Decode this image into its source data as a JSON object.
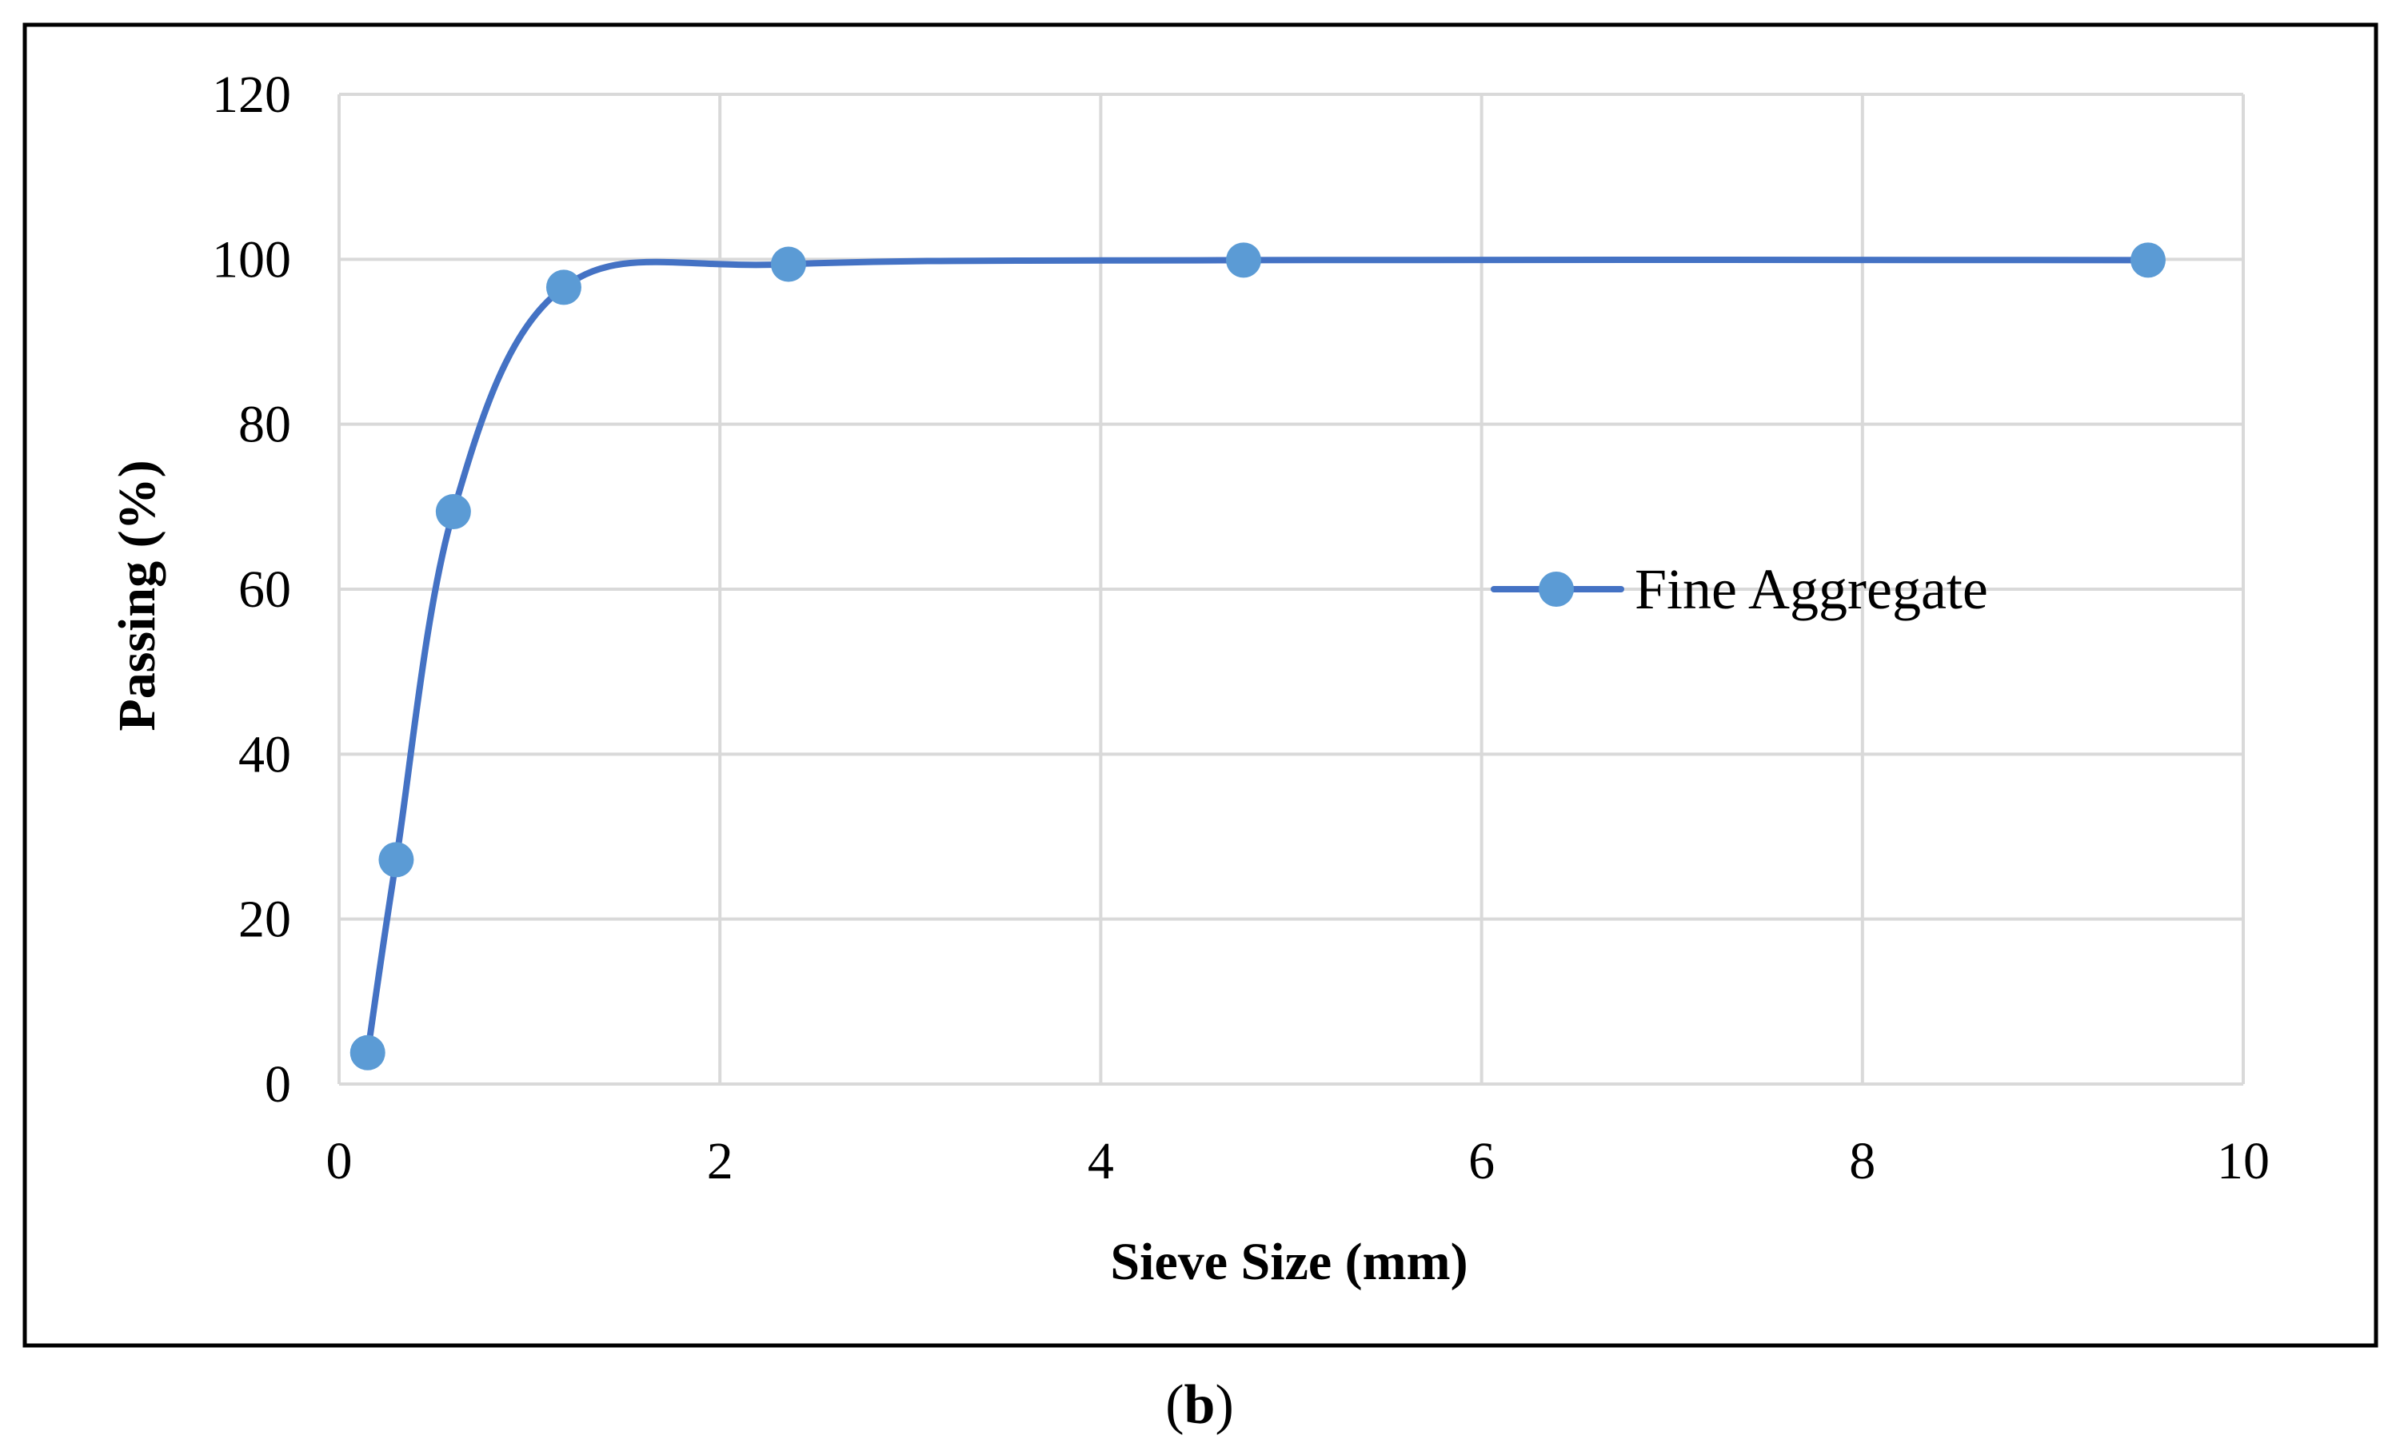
{
  "chart_data": {
    "type": "line",
    "smooth": true,
    "xlabel": "Sieve Size (mm)",
    "ylabel": "Passing (%)",
    "xlim": [
      0,
      10
    ],
    "ylim": [
      0,
      120
    ],
    "xticks": [
      0,
      2,
      4,
      6,
      8,
      10
    ],
    "yticks": [
      0,
      20,
      40,
      60,
      80,
      100,
      120
    ],
    "grid": true,
    "legend_position": "right",
    "series": [
      {
        "name": "Fine Aggregate",
        "color": "#4472C4",
        "marker_color": "#5B9BD5",
        "x": [
          0.15,
          0.3,
          0.6,
          1.18,
          2.36,
          4.75,
          9.5
        ],
        "y": [
          3.8,
          27.2,
          69.4,
          96.6,
          99.4,
          99.9,
          99.9
        ]
      }
    ]
  },
  "caption": {
    "open": "(",
    "letter": "b",
    "close": ")"
  },
  "colors": {
    "frame": "#000000",
    "grid": "#D9D9D9"
  }
}
